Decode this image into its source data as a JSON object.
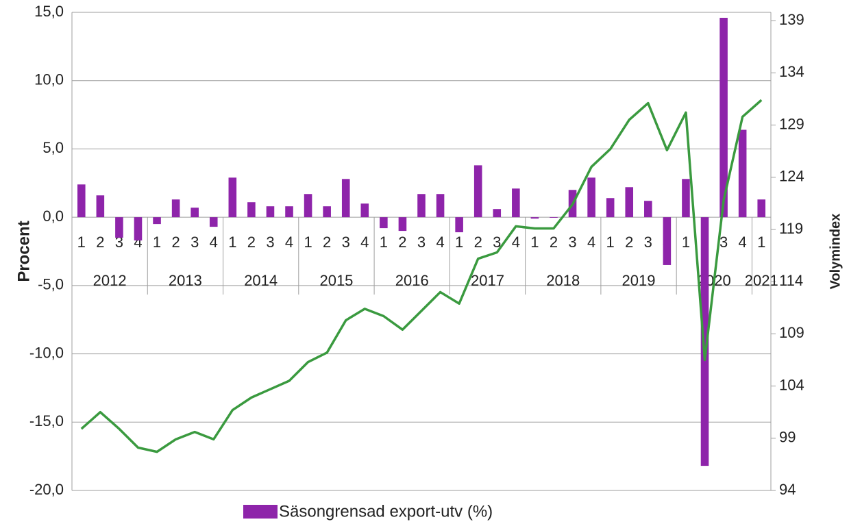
{
  "chart_data": {
    "type": "bar_line",
    "y_label": "Procent",
    "y2_label": "Volymindex",
    "categories": [
      "1",
      "2",
      "3",
      "4",
      "1",
      "2",
      "3",
      "4",
      "1",
      "2",
      "3",
      "4",
      "1",
      "2",
      "3",
      "4",
      "1",
      "2",
      "3",
      "4",
      "1",
      "2",
      "3",
      "4",
      "1",
      "2",
      "3",
      "4",
      "1",
      "2",
      "3",
      "4",
      "1",
      "2",
      "3",
      "4",
      "1"
    ],
    "category_groups": [
      {
        "label": "2012",
        "span": 4
      },
      {
        "label": "2013",
        "span": 4
      },
      {
        "label": "2014",
        "span": 4
      },
      {
        "label": "2015",
        "span": 4
      },
      {
        "label": "2016",
        "span": 4
      },
      {
        "label": "2017",
        "span": 4
      },
      {
        "label": "2018",
        "span": 4
      },
      {
        "label": "2019",
        "span": 4
      },
      {
        "label": "2020",
        "span": 4
      },
      {
        "label": "2021",
        "span": 1
      }
    ],
    "series": [
      {
        "name": "Säsongrensad export-utv (%)",
        "color": "#8e24aa",
        "kind": "bar",
        "axis": "y",
        "values": [
          2.4,
          1.6,
          -1.5,
          -1.7,
          -0.5,
          1.3,
          0.7,
          -0.7,
          2.9,
          1.1,
          0.8,
          0.8,
          1.7,
          0.8,
          2.8,
          1.0,
          -0.8,
          -1.0,
          1.7,
          1.7,
          -1.1,
          3.8,
          0.6,
          2.1,
          -0.1,
          0.0,
          2.0,
          2.9,
          1.4,
          2.2,
          1.2,
          -3.5,
          2.8,
          -18.2,
          14.6,
          6.4,
          1.3
        ]
      },
      {
        "color": "#3a9a3f",
        "kind": "line",
        "axis": "y2",
        "values": [
          99.9,
          101.5,
          99.9,
          98.1,
          97.7,
          98.9,
          99.6,
          98.9,
          101.7,
          102.9,
          103.7,
          104.5,
          106.3,
          107.2,
          110.3,
          111.4,
          110.7,
          109.4,
          111.2,
          113.0,
          111.9,
          116.2,
          116.8,
          119.3,
          119.1,
          119.1,
          121.4,
          125.0,
          126.7,
          129.5,
          131.1,
          126.6,
          130.2,
          106.5,
          121.8,
          129.8,
          131.4
        ]
      }
    ],
    "ylim": [
      -20,
      15
    ],
    "yticks": [
      {
        "value": -20,
        "label": "-20,0"
      },
      {
        "value": -15,
        "label": "-15,0"
      },
      {
        "value": -10,
        "label": "-10,0"
      },
      {
        "value": -5,
        "label": "-5,0"
      },
      {
        "value": 0,
        "label": "0,0"
      },
      {
        "value": 5,
        "label": "5,0"
      },
      {
        "value": 10,
        "label": "10,0"
      },
      {
        "value": 15,
        "label": "15,0"
      }
    ],
    "y2lim": [
      94,
      139.8
    ],
    "y2ticks": [
      94,
      99,
      104,
      109,
      114,
      119,
      124,
      129,
      134,
      139
    ],
    "grid": true,
    "legend": "bottom"
  }
}
